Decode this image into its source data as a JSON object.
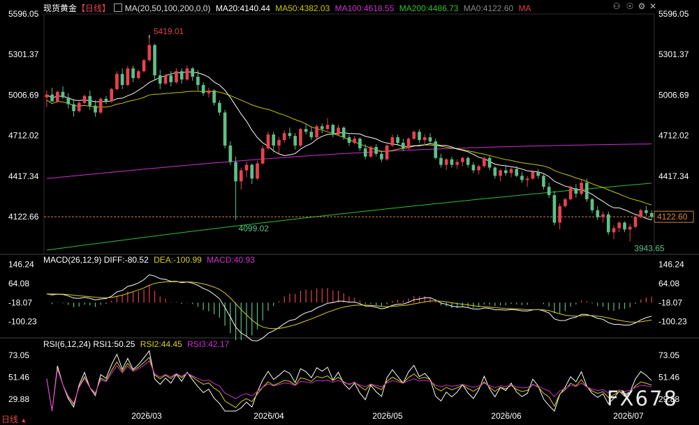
{
  "header": {
    "symbol": "现货黄金",
    "period": "【日线】",
    "ma_label": "MA(20,50,100,200,0,0)",
    "ma20": "MA20:4140.44",
    "ma50": "MA50:4382.03",
    "ma100": "MA100:4618.55",
    "ma200": "MA200:4486.73",
    "ma0": "MA0:4122.60",
    "ma_tail": "MA"
  },
  "macd_header": {
    "label": "MACD(26,12,9)",
    "diff": "DIFF:-80.52",
    "dea": "DEA:-100.99",
    "macd": "MACD:40.93"
  },
  "rsi_header": {
    "label": "RSI(6,12,24)",
    "rsi1": "RSI1:50.25",
    "rsi2": "RSI2:44.45",
    "rsi3": "RSI3:42.17"
  },
  "footer": {
    "period_tab": "日线",
    "watermark": "FX678"
  },
  "icons": [
    "checkbox-icon",
    "lock-icon",
    "eye-icon",
    "settings-icon",
    "close-icon"
  ],
  "colors": {
    "up": "#e8424e",
    "down": "#5fc087",
    "ma20": "#ffffff",
    "ma50": "#c8c800",
    "ma100": "#d030d0",
    "ma200": "#30c030",
    "ma0": "#e04040",
    "current_price_line": "#d4883a"
  },
  "chart_data": {
    "type": "candlestick",
    "price_axis_ticks": [
      "5596.05",
      "5301.37",
      "5006.69",
      "4712.02",
      "4417.34",
      "4122.66"
    ],
    "ylim": [
      3850,
      5596.05
    ],
    "current_price": "4122.60",
    "annotations": {
      "high": "5419.01",
      "low_a": "4099.02",
      "low_b": "3943.65"
    },
    "x_labels": [
      "2026/03",
      "2026/04",
      "2026/05",
      "2026/06",
      "2026/07"
    ],
    "candles_ohlc": [
      [
        4990,
        5040,
        4920,
        5010
      ],
      [
        5010,
        5060,
        4970,
        4960
      ],
      [
        4960,
        5040,
        4950,
        5030
      ],
      [
        5030,
        5070,
        4980,
        4990
      ],
      [
        4990,
        5020,
        4910,
        4940
      ],
      [
        4940,
        4980,
        4850,
        4890
      ],
      [
        4890,
        4960,
        4880,
        4950
      ],
      [
        4950,
        5010,
        4940,
        5000
      ],
      [
        5000,
        5040,
        4900,
        4930
      ],
      [
        4930,
        4970,
        4850,
        4880
      ],
      [
        4880,
        4990,
        4870,
        4980
      ],
      [
        4980,
        5000,
        4940,
        4960
      ],
      [
        4960,
        5060,
        4950,
        5050
      ],
      [
        5050,
        5180,
        5040,
        5160
      ],
      [
        5160,
        5200,
        5050,
        5080
      ],
      [
        5080,
        5220,
        5070,
        5200
      ],
      [
        5200,
        5220,
        5100,
        5130
      ],
      [
        5130,
        5190,
        5120,
        5180
      ],
      [
        5180,
        5270,
        5170,
        5260
      ],
      [
        5260,
        5419.01,
        5250,
        5370
      ],
      [
        5370,
        5380,
        5120,
        5150
      ],
      [
        5150,
        5190,
        5050,
        5090
      ],
      [
        5090,
        5160,
        5080,
        5150
      ],
      [
        5150,
        5180,
        5070,
        5100
      ],
      [
        5100,
        5200,
        5090,
        5180
      ],
      [
        5180,
        5200,
        5090,
        5120
      ],
      [
        5120,
        5220,
        5110,
        5200
      ],
      [
        5200,
        5210,
        5110,
        5140
      ],
      [
        5140,
        5190,
        5040,
        5080
      ],
      [
        5080,
        5100,
        5000,
        5020
      ],
      [
        5020,
        5060,
        4990,
        5040
      ],
      [
        5040,
        5050,
        4930,
        4950
      ],
      [
        4950,
        4970,
        4860,
        4880
      ],
      [
        4880,
        4900,
        4620,
        4640
      ],
      [
        4640,
        4670,
        4500,
        4520
      ],
      [
        4520,
        4560,
        4099.02,
        4380
      ],
      [
        4380,
        4480,
        4320,
        4460
      ],
      [
        4460,
        4520,
        4410,
        4500
      ],
      [
        4500,
        4510,
        4360,
        4400
      ],
      [
        4400,
        4530,
        4390,
        4510
      ],
      [
        4510,
        4640,
        4500,
        4620
      ],
      [
        4620,
        4740,
        4610,
        4720
      ],
      [
        4720,
        4740,
        4590,
        4640
      ],
      [
        4640,
        4700,
        4580,
        4680
      ],
      [
        4680,
        4750,
        4660,
        4730
      ],
      [
        4730,
        4770,
        4690,
        4710
      ],
      [
        4710,
        4730,
        4610,
        4640
      ],
      [
        4640,
        4770,
        4630,
        4760
      ],
      [
        4760,
        4800,
        4720,
        4740
      ],
      [
        4740,
        4780,
        4680,
        4700
      ],
      [
        4700,
        4790,
        4690,
        4780
      ],
      [
        4780,
        4800,
        4730,
        4760
      ],
      [
        4760,
        4840,
        4750,
        4790
      ],
      [
        4790,
        4800,
        4700,
        4720
      ],
      [
        4720,
        4790,
        4710,
        4770
      ],
      [
        4770,
        4780,
        4680,
        4700
      ],
      [
        4700,
        4720,
        4640,
        4660
      ],
      [
        4660,
        4710,
        4650,
        4690
      ],
      [
        4690,
        4700,
        4600,
        4620
      ],
      [
        4620,
        4650,
        4540,
        4560
      ],
      [
        4560,
        4640,
        4550,
        4630
      ],
      [
        4630,
        4650,
        4560,
        4580
      ],
      [
        4580,
        4600,
        4520,
        4540
      ],
      [
        4540,
        4650,
        4530,
        4640
      ],
      [
        4640,
        4720,
        4630,
        4700
      ],
      [
        4700,
        4720,
        4640,
        4660
      ],
      [
        4660,
        4690,
        4600,
        4620
      ],
      [
        4620,
        4700,
        4610,
        4690
      ],
      [
        4690,
        4750,
        4680,
        4740
      ],
      [
        4740,
        4760,
        4660,
        4680
      ],
      [
        4680,
        4720,
        4640,
        4700
      ],
      [
        4700,
        4730,
        4650,
        4670
      ],
      [
        4670,
        4690,
        4540,
        4550
      ],
      [
        4550,
        4580,
        4480,
        4500
      ],
      [
        4500,
        4550,
        4460,
        4540
      ],
      [
        4540,
        4560,
        4480,
        4500
      ],
      [
        4500,
        4540,
        4470,
        4520
      ],
      [
        4520,
        4560,
        4490,
        4550
      ],
      [
        4550,
        4560,
        4480,
        4500
      ],
      [
        4500,
        4520,
        4440,
        4460
      ],
      [
        4460,
        4500,
        4430,
        4490
      ],
      [
        4490,
        4560,
        4480,
        4550
      ],
      [
        4550,
        4570,
        4460,
        4480
      ],
      [
        4480,
        4490,
        4400,
        4420
      ],
      [
        4420,
        4470,
        4380,
        4460
      ],
      [
        4460,
        4500,
        4420,
        4440
      ],
      [
        4440,
        4480,
        4410,
        4470
      ],
      [
        4470,
        4490,
        4410,
        4420
      ],
      [
        4420,
        4450,
        4370,
        4390
      ],
      [
        4390,
        4420,
        4340,
        4400
      ],
      [
        4400,
        4460,
        4390,
        4450
      ],
      [
        4450,
        4470,
        4400,
        4420
      ],
      [
        4420,
        4430,
        4320,
        4340
      ],
      [
        4340,
        4370,
        4260,
        4280
      ],
      [
        4280,
        4310,
        4060,
        4080
      ],
      [
        4080,
        4220,
        4030,
        4200
      ],
      [
        4200,
        4260,
        4190,
        4250
      ],
      [
        4250,
        4350,
        4240,
        4330
      ],
      [
        4330,
        4360,
        4260,
        4290
      ],
      [
        4290,
        4390,
        4280,
        4370
      ],
      [
        4370,
        4400,
        4230,
        4250
      ],
      [
        4250,
        4260,
        4150,
        4170
      ],
      [
        4170,
        4200,
        4100,
        4120
      ],
      [
        4120,
        4160,
        4080,
        4140
      ],
      [
        4140,
        4160,
        3990,
        4010
      ],
      [
        4010,
        4060,
        3960,
        4040
      ],
      [
        4040,
        4090,
        4010,
        4080
      ],
      [
        4080,
        4090,
        4010,
        4030
      ],
      [
        4030,
        4070,
        3943.65,
        4050
      ],
      [
        4050,
        4130,
        4040,
        4120
      ],
      [
        4120,
        4180,
        4110,
        4170
      ],
      [
        4170,
        4200,
        4130,
        4150
      ],
      [
        4150,
        4170,
        4100,
        4122.6
      ]
    ]
  }
}
